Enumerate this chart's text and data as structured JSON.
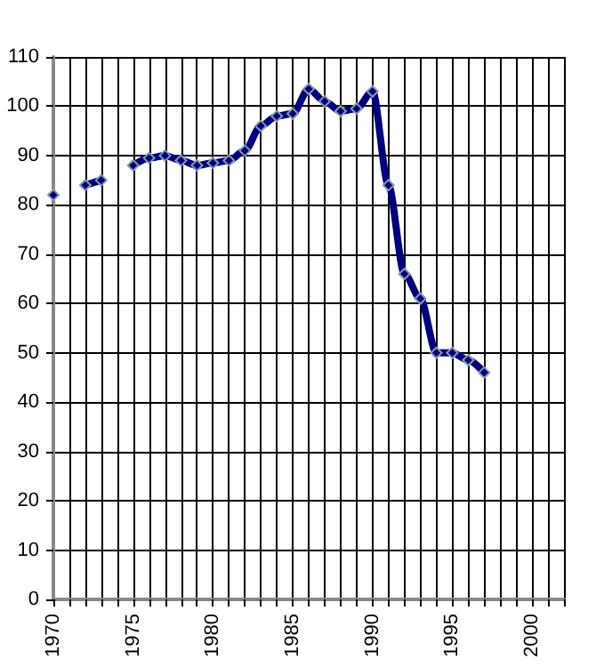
{
  "chart_data": {
    "type": "line",
    "x": [
      1970,
      1971,
      1972,
      1973,
      1974,
      1975,
      1976,
      1977,
      1978,
      1979,
      1980,
      1981,
      1982,
      1983,
      1984,
      1985,
      1986,
      1987,
      1988,
      1989,
      1990,
      1991,
      1992,
      1993,
      1994,
      1995,
      1996,
      1997
    ],
    "series": [
      {
        "color": "#000080",
        "values": [
          82,
          null,
          84,
          85,
          null,
          88,
          89.5,
          90,
          89,
          88,
          88.5,
          89,
          91,
          96,
          98,
          98.5,
          103.5,
          101,
          99,
          99.5,
          103,
          84,
          66,
          61,
          50,
          50,
          48.5,
          46
        ]
      }
    ],
    "xlim": [
      1970,
      2002
    ],
    "xticks": [
      1970,
      {
        "value": 1971,
        "label": null
      },
      {
        "value": 1972,
        "label": null
      },
      {
        "value": 1973,
        "label": null
      },
      {
        "value": 1974,
        "label": null
      },
      1975,
      {
        "value": 1976,
        "label": null
      },
      {
        "value": 1977,
        "label": null
      },
      {
        "value": 1978,
        "label": null
      },
      {
        "value": 1979,
        "label": null
      },
      1980,
      {
        "value": 1981,
        "label": null
      },
      {
        "value": 1982,
        "label": null
      },
      {
        "value": 1983,
        "label": null
      },
      {
        "value": 1984,
        "label": null
      },
      1985,
      {
        "value": 1986,
        "label": null
      },
      {
        "value": 1987,
        "label": null
      },
      {
        "value": 1988,
        "label": null
      },
      {
        "value": 1989,
        "label": null
      },
      1990,
      {
        "value": 1991,
        "label": null
      },
      {
        "value": 1992,
        "label": null
      },
      {
        "value": 1993,
        "label": null
      },
      {
        "value": 1994,
        "label": null
      },
      1995,
      {
        "value": 1996,
        "label": null
      },
      {
        "value": 1997,
        "label": null
      },
      {
        "value": 1998,
        "label": null
      },
      {
        "value": 1999,
        "label": null
      },
      2000,
      {
        "value": 2001,
        "label": null
      },
      {
        "value": 2002,
        "label": null
      }
    ],
    "ylim": [
      0,
      110
    ],
    "yticks": [
      0,
      10,
      20,
      30,
      40,
      50,
      60,
      70,
      80,
      90,
      100,
      110
    ],
    "grid": true,
    "marker": "diamond",
    "line_style": "solid"
  }
}
